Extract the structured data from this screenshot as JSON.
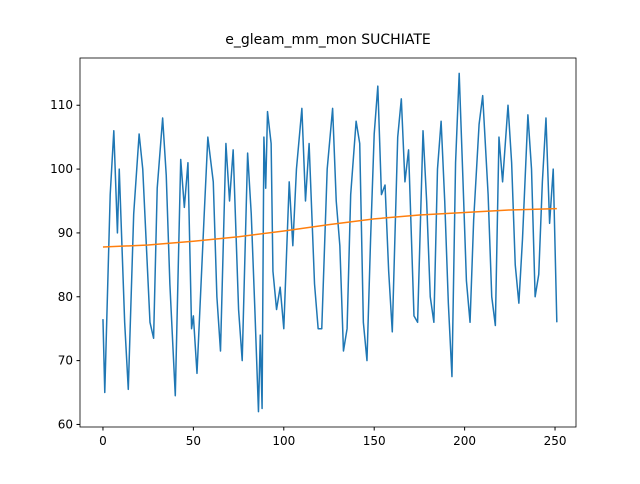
{
  "chart_data": {
    "type": "line",
    "title": "e_gleam_mm_mon SUCHIATE",
    "xlim": [
      -12.7,
      261.6
    ],
    "ylim": [
      59.6,
      117.4
    ],
    "xticks": [
      0,
      50,
      100,
      150,
      200,
      250
    ],
    "yticks": [
      60,
      70,
      80,
      90,
      100,
      110
    ],
    "grid": false,
    "series": [
      {
        "color": "#1f77b4",
        "x": [
          0,
          1,
          4,
          6,
          8,
          9,
          12,
          14,
          17,
          20,
          22,
          26,
          28,
          30,
          33,
          35,
          37,
          40,
          43,
          45,
          47,
          49,
          50,
          52,
          56,
          58,
          61,
          63,
          65,
          68,
          70,
          72,
          75,
          77,
          80,
          82,
          84,
          86,
          87,
          88,
          89,
          90,
          91,
          93,
          94,
          96,
          98,
          100,
          103,
          105,
          107,
          110,
          112,
          114,
          117,
          119,
          121,
          124,
          127,
          129,
          131,
          133,
          135,
          137,
          140,
          142,
          144,
          146,
          148,
          150,
          152,
          154,
          156,
          158,
          160,
          163,
          165,
          167,
          169,
          172,
          174,
          177,
          179,
          181,
          183,
          185,
          187,
          189,
          191,
          193,
          195,
          197,
          199,
          201,
          203,
          205,
          208,
          210,
          213,
          215,
          217,
          219,
          221,
          224,
          226,
          228,
          230,
          232,
          235,
          237,
          239,
          241,
          243,
          245,
          247,
          249,
          251
        ],
        "values": [
          76.5,
          65,
          96,
          106,
          90,
          100,
          76,
          65.5,
          93,
          105.5,
          100,
          76,
          73.5,
          97,
          108,
          99,
          82,
          64.5,
          101.5,
          94,
          101,
          75,
          77,
          68,
          93,
          105,
          98,
          80,
          71.5,
          104,
          95,
          103,
          78,
          70,
          102.5,
          93,
          78,
          62,
          74,
          62.5,
          105,
          97,
          109,
          104,
          84,
          78,
          81.5,
          75,
          98,
          88,
          100,
          109.5,
          95,
          104,
          82,
          75,
          75,
          100,
          109.5,
          95,
          88,
          71.5,
          75,
          96,
          107.5,
          104,
          76,
          70,
          89,
          105.5,
          113,
          96,
          97.5,
          84,
          74.5,
          105,
          111,
          98,
          103,
          77,
          76,
          106,
          95,
          80,
          76,
          100,
          107.5,
          95,
          79,
          67.5,
          101,
          115,
          99,
          82.5,
          76,
          92,
          107,
          111.5,
          96,
          80,
          75.5,
          105,
          98,
          110,
          101,
          85,
          79,
          89,
          108.5,
          100,
          80,
          83.5,
          98,
          108,
          91.5,
          100,
          76
        ]
      },
      {
        "color": "#ff7f0e",
        "x": [
          0,
          25,
          50,
          75,
          100,
          125,
          150,
          175,
          200,
          225,
          251
        ],
        "values": [
          87.8,
          88.1,
          88.7,
          89.4,
          90.3,
          91.3,
          92.2,
          92.8,
          93.2,
          93.6,
          93.8
        ]
      }
    ]
  }
}
